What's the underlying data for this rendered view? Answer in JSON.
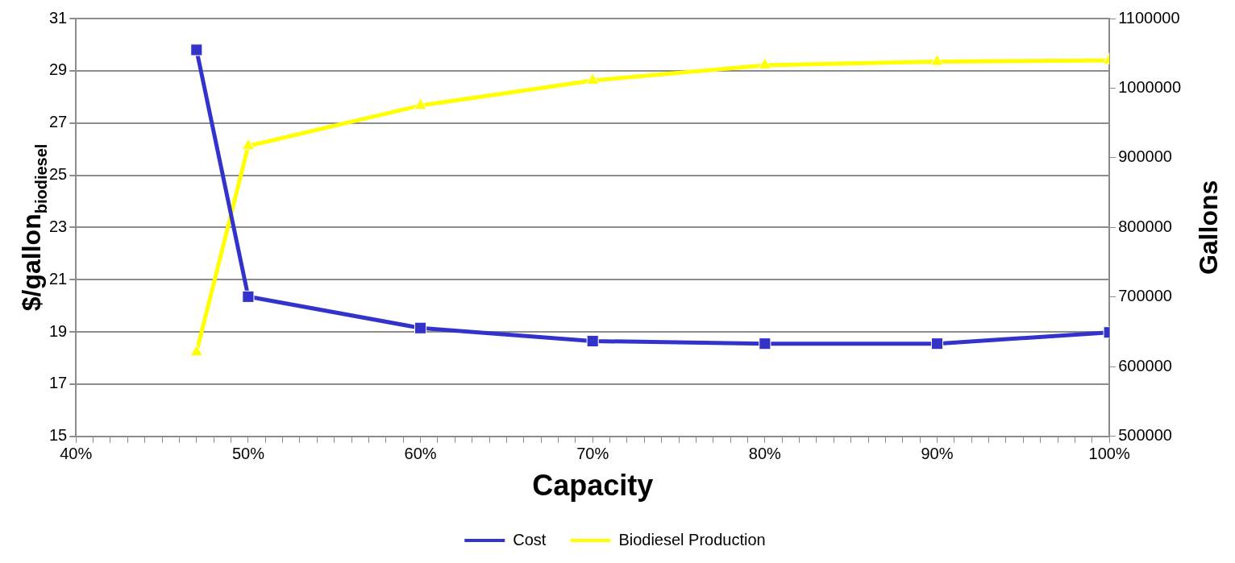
{
  "chart_data": {
    "type": "line",
    "xlabel": "Capacity",
    "ylabel": "$/gallon$_{biodiesel}$",
    "y2label": "Gallons",
    "x": [
      47,
      50,
      60,
      70,
      80,
      90,
      100
    ],
    "series": [
      {
        "name": "Cost",
        "color": "#3333cc",
        "marker": "square",
        "values": [
          29.8,
          20.35,
          19.15,
          18.65,
          18.55,
          18.55,
          18.98
        ]
      },
      {
        "name": "Biodiesel Production",
        "color": "#ffff00",
        "marker": "triangle",
        "axis": "y2",
        "values": [
          621000,
          917000,
          975000,
          1011000,
          1033000,
          1038000,
          1040000
        ]
      }
    ],
    "xlim": [
      40,
      100
    ],
    "xticks": [
      {
        "value": 40,
        "label": "40%"
      },
      {
        "value": 41,
        "label": null
      },
      {
        "value": 42,
        "label": null
      },
      {
        "value": 43,
        "label": null
      },
      {
        "value": 44,
        "label": null
      },
      {
        "value": 45,
        "label": null
      },
      {
        "value": 46,
        "label": null
      },
      {
        "value": 47,
        "label": null
      },
      {
        "value": 48,
        "label": null
      },
      {
        "value": 49,
        "label": null
      },
      {
        "value": 50,
        "label": "50%"
      },
      {
        "value": 51,
        "label": null
      },
      {
        "value": 52,
        "label": null
      },
      {
        "value": 53,
        "label": null
      },
      {
        "value": 54,
        "label": null
      },
      {
        "value": 55,
        "label": null
      },
      {
        "value": 56,
        "label": null
      },
      {
        "value": 57,
        "label": null
      },
      {
        "value": 58,
        "label": null
      },
      {
        "value": 59,
        "label": null
      },
      {
        "value": 60,
        "label": "60%"
      },
      {
        "value": 61,
        "label": null
      },
      {
        "value": 62,
        "label": null
      },
      {
        "value": 63,
        "label": null
      },
      {
        "value": 64,
        "label": null
      },
      {
        "value": 65,
        "label": null
      },
      {
        "value": 66,
        "label": null
      },
      {
        "value": 67,
        "label": null
      },
      {
        "value": 68,
        "label": null
      },
      {
        "value": 69,
        "label": null
      },
      {
        "value": 70,
        "label": "70%"
      },
      {
        "value": 71,
        "label": null
      },
      {
        "value": 72,
        "label": null
      },
      {
        "value": 73,
        "label": null
      },
      {
        "value": 74,
        "label": null
      },
      {
        "value": 75,
        "label": null
      },
      {
        "value": 76,
        "label": null
      },
      {
        "value": 77,
        "label": null
      },
      {
        "value": 78,
        "label": null
      },
      {
        "value": 79,
        "label": null
      },
      {
        "value": 80,
        "label": "80%"
      },
      {
        "value": 81,
        "label": null
      },
      {
        "value": 82,
        "label": null
      },
      {
        "value": 83,
        "label": null
      },
      {
        "value": 84,
        "label": null
      },
      {
        "value": 85,
        "label": null
      },
      {
        "value": 86,
        "label": null
      },
      {
        "value": 87,
        "label": null
      },
      {
        "value": 88,
        "label": null
      },
      {
        "value": 89,
        "label": null
      },
      {
        "value": 90,
        "label": "90%"
      },
      {
        "value": 91,
        "label": null
      },
      {
        "value": 92,
        "label": null
      },
      {
        "value": 93,
        "label": null
      },
      {
        "value": 94,
        "label": null
      },
      {
        "value": 95,
        "label": null
      },
      {
        "value": 96,
        "label": null
      },
      {
        "value": 97,
        "label": null
      },
      {
        "value": 98,
        "label": null
      },
      {
        "value": 99,
        "label": null
      },
      {
        "value": 100,
        "label": "100%"
      }
    ],
    "ylim": [
      15,
      31
    ],
    "yticks": [
      15,
      17,
      19,
      21,
      23,
      25,
      27,
      29,
      31
    ],
    "y2lim": [
      500000,
      1100000
    ],
    "y2ticks": [
      500000,
      600000,
      700000,
      800000,
      900000,
      1000000,
      1100000
    ],
    "grid": "y",
    "legend": "bottom",
    "line_style": "solid"
  }
}
